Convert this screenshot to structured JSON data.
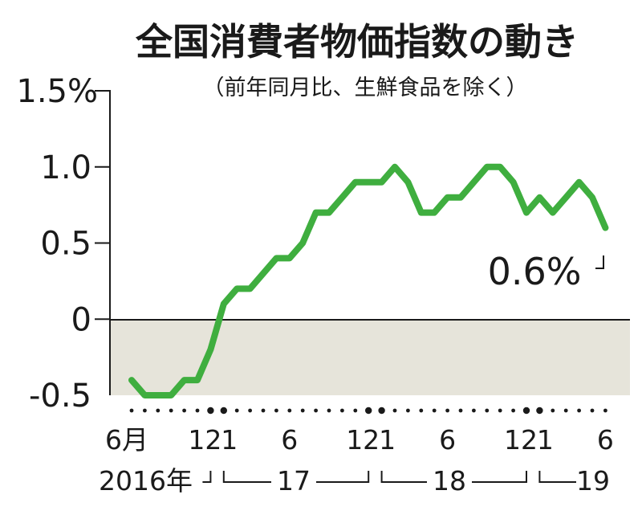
{
  "chart_data": {
    "type": "line",
    "title": "全国消費者物価指数の動き",
    "subtitle": "（前年同月比、生鮮食品を除く）",
    "ylim": [
      -0.5,
      1.5
    ],
    "yticks": [
      "1.5%",
      "1.0",
      "0.5",
      "0",
      "-0.5"
    ],
    "x_tick_labels": [
      "6月",
      "12",
      "1",
      "6",
      "12",
      "1",
      "6",
      "12",
      "1",
      "6"
    ],
    "year_labels": [
      "2016年",
      "17",
      "18",
      "19"
    ],
    "series": [
      {
        "values": [
          -0.4,
          -0.5,
          -0.5,
          -0.5,
          -0.4,
          -0.4,
          -0.2,
          0.1,
          0.2,
          0.2,
          0.3,
          0.4,
          0.4,
          0.5,
          0.7,
          0.7,
          0.8,
          0.9,
          0.9,
          0.9,
          1.0,
          0.9,
          0.7,
          0.7,
          0.8,
          0.8,
          0.9,
          1.0,
          1.0,
          0.9,
          0.7,
          0.8,
          0.7,
          0.8,
          0.9,
          0.8,
          0.6
        ],
        "color": "#3fae3f"
      }
    ],
    "x_start": "2016-06",
    "x_end": "2019-06",
    "annotation": "0.6%",
    "grid": false,
    "negative_region_color": "#e6e4da"
  }
}
